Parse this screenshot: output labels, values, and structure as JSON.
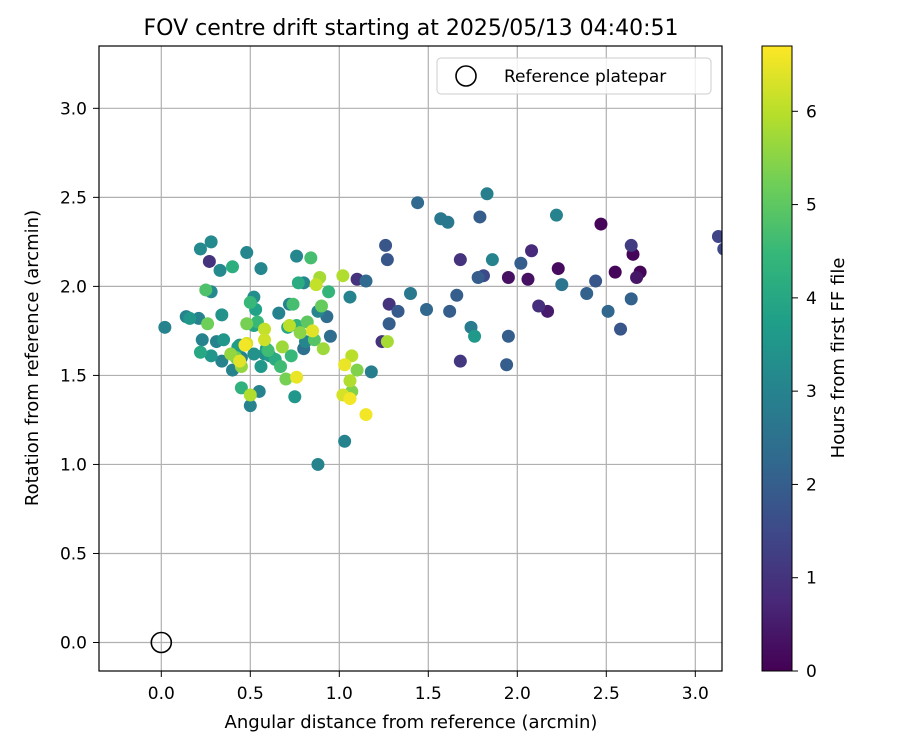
{
  "chart_data": {
    "type": "scatter",
    "title": "FOV centre drift starting at 2025/05/13 04:40:51",
    "xlabel": "Angular distance from reference (arcmin)",
    "ylabel": "Rotation from reference (arcmin)",
    "xlim": [
      -0.35,
      3.15
    ],
    "ylim": [
      -0.16,
      3.35
    ],
    "xticks": [
      0.0,
      0.5,
      1.0,
      1.5,
      2.0,
      2.5,
      3.0
    ],
    "yticks": [
      0.0,
      0.5,
      1.0,
      1.5,
      2.0,
      2.5,
      3.0
    ],
    "xtick_labels": [
      "0.0",
      "0.5",
      "1.0",
      "1.5",
      "2.0",
      "2.5",
      "3.0"
    ],
    "ytick_labels": [
      "0.0",
      "0.5",
      "1.0",
      "1.5",
      "2.0",
      "2.5",
      "3.0"
    ],
    "grid": true,
    "legend": {
      "placement": "top-right",
      "entries": [
        {
          "label": "Reference platepar",
          "marker": "open-circle",
          "x": 0.0,
          "y": 0.0
        }
      ]
    },
    "colorbar": {
      "label": "Hours from first FF file",
      "range": [
        0,
        6.7
      ],
      "ticks": [
        0,
        1,
        2,
        3,
        4,
        5,
        6
      ],
      "tick_labels": [
        "0",
        "1",
        "2",
        "3",
        "4",
        "5",
        "6"
      ],
      "colormap": "viridis"
    },
    "colormap_stops": [
      "#440154",
      "#482878",
      "#3e4989",
      "#31688e",
      "#26828e",
      "#1f9e89",
      "#35b779",
      "#6ece58",
      "#b5de2b",
      "#fde725"
    ],
    "points": [
      {
        "x": 2.47,
        "y": 2.35,
        "c": 0.1
      },
      {
        "x": 2.65,
        "y": 2.18,
        "c": 0.1
      },
      {
        "x": 2.69,
        "y": 2.08,
        "c": 0.1
      },
      {
        "x": 2.55,
        "y": 2.08,
        "c": 0.1
      },
      {
        "x": 2.23,
        "y": 2.1,
        "c": 0.2
      },
      {
        "x": 2.06,
        "y": 2.04,
        "c": 0.3
      },
      {
        "x": 1.95,
        "y": 2.05,
        "c": 0.3
      },
      {
        "x": 2.67,
        "y": 2.05,
        "c": 0.4
      },
      {
        "x": 2.17,
        "y": 1.86,
        "c": 0.5
      },
      {
        "x": 2.08,
        "y": 2.2,
        "c": 0.8
      },
      {
        "x": 2.12,
        "y": 1.89,
        "c": 0.9
      },
      {
        "x": 1.68,
        "y": 2.15,
        "c": 1.0
      },
      {
        "x": 1.1,
        "y": 2.04,
        "c": 1.0
      },
      {
        "x": 1.24,
        "y": 1.69,
        "c": 1.0
      },
      {
        "x": 1.28,
        "y": 1.9,
        "c": 1.0
      },
      {
        "x": 0.27,
        "y": 2.14,
        "c": 1.0
      },
      {
        "x": 1.68,
        "y": 1.58,
        "c": 1.1
      },
      {
        "x": 2.64,
        "y": 2.23,
        "c": 1.2
      },
      {
        "x": 3.13,
        "y": 2.28,
        "c": 1.4
      },
      {
        "x": 3.16,
        "y": 2.21,
        "c": 1.5
      },
      {
        "x": 1.81,
        "y": 2.06,
        "c": 1.5
      },
      {
        "x": 2.44,
        "y": 2.03,
        "c": 1.8
      },
      {
        "x": 2.58,
        "y": 1.76,
        "c": 1.8
      },
      {
        "x": 1.26,
        "y": 2.23,
        "c": 1.8
      },
      {
        "x": 1.27,
        "y": 2.15,
        "c": 1.8
      },
      {
        "x": 1.33,
        "y": 1.86,
        "c": 1.9
      },
      {
        "x": 1.79,
        "y": 2.39,
        "c": 2.0
      },
      {
        "x": 1.78,
        "y": 2.05,
        "c": 2.0
      },
      {
        "x": 1.66,
        "y": 1.95,
        "c": 2.0
      },
      {
        "x": 2.02,
        "y": 2.13,
        "c": 2.0
      },
      {
        "x": 1.95,
        "y": 1.72,
        "c": 2.0
      },
      {
        "x": 1.94,
        "y": 1.56,
        "c": 2.0
      },
      {
        "x": 1.62,
        "y": 1.86,
        "c": 2.0
      },
      {
        "x": 1.28,
        "y": 1.79,
        "c": 2.0
      },
      {
        "x": 2.39,
        "y": 1.96,
        "c": 2.1
      },
      {
        "x": 2.64,
        "y": 1.93,
        "c": 2.1
      },
      {
        "x": 2.51,
        "y": 1.86,
        "c": 2.2
      },
      {
        "x": 1.49,
        "y": 1.87,
        "c": 2.2
      },
      {
        "x": 1.44,
        "y": 2.47,
        "c": 2.3
      },
      {
        "x": 1.15,
        "y": 2.03,
        "c": 2.3
      },
      {
        "x": 0.95,
        "y": 1.72,
        "c": 2.4
      },
      {
        "x": 0.93,
        "y": 1.83,
        "c": 2.4
      },
      {
        "x": 0.8,
        "y": 1.65,
        "c": 2.5
      },
      {
        "x": 2.25,
        "y": 2.01,
        "c": 2.6
      },
      {
        "x": 1.4,
        "y": 1.96,
        "c": 2.7
      },
      {
        "x": 1.57,
        "y": 2.38,
        "c": 2.7
      },
      {
        "x": 1.61,
        "y": 2.36,
        "c": 2.7
      },
      {
        "x": 1.74,
        "y": 1.77,
        "c": 2.8
      },
      {
        "x": 1.83,
        "y": 2.52,
        "c": 2.9
      },
      {
        "x": 1.18,
        "y": 1.52,
        "c": 2.9
      },
      {
        "x": 1.06,
        "y": 1.94,
        "c": 3.0
      },
      {
        "x": 2.22,
        "y": 2.4,
        "c": 3.0
      },
      {
        "x": 1.86,
        "y": 2.15,
        "c": 3.0
      },
      {
        "x": 0.88,
        "y": 1.0,
        "c": 3.0
      },
      {
        "x": 1.03,
        "y": 1.13,
        "c": 3.0
      },
      {
        "x": 0.02,
        "y": 1.77,
        "c": 3.0
      },
      {
        "x": 0.14,
        "y": 1.83,
        "c": 3.0
      },
      {
        "x": 0.21,
        "y": 1.82,
        "c": 3.0
      },
      {
        "x": 0.23,
        "y": 1.7,
        "c": 3.0
      },
      {
        "x": 0.31,
        "y": 1.69,
        "c": 3.0
      },
      {
        "x": 0.34,
        "y": 1.58,
        "c": 3.0
      },
      {
        "x": 0.4,
        "y": 1.53,
        "c": 3.0
      },
      {
        "x": 0.45,
        "y": 1.6,
        "c": 3.0
      },
      {
        "x": 0.5,
        "y": 1.33,
        "c": 3.0
      },
      {
        "x": 0.55,
        "y": 1.41,
        "c": 3.0
      },
      {
        "x": 0.66,
        "y": 1.85,
        "c": 3.0
      },
      {
        "x": 0.72,
        "y": 1.9,
        "c": 3.0
      },
      {
        "x": 0.76,
        "y": 2.17,
        "c": 3.1
      },
      {
        "x": 0.8,
        "y": 2.02,
        "c": 3.1
      },
      {
        "x": 0.81,
        "y": 1.69,
        "c": 3.1
      },
      {
        "x": 0.88,
        "y": 1.86,
        "c": 3.1
      },
      {
        "x": 0.56,
        "y": 2.1,
        "c": 3.1
      },
      {
        "x": 0.48,
        "y": 2.19,
        "c": 3.1
      },
      {
        "x": 0.28,
        "y": 2.25,
        "c": 3.2
      },
      {
        "x": 0.33,
        "y": 2.09,
        "c": 3.2
      },
      {
        "x": 0.22,
        "y": 2.21,
        "c": 3.2
      },
      {
        "x": 0.28,
        "y": 1.97,
        "c": 3.2
      },
      {
        "x": 0.52,
        "y": 1.94,
        "c": 3.3
      },
      {
        "x": 0.58,
        "y": 1.62,
        "c": 3.3
      },
      {
        "x": 0.44,
        "y": 1.67,
        "c": 3.4
      },
      {
        "x": 0.52,
        "y": 1.62,
        "c": 3.4
      },
      {
        "x": 0.34,
        "y": 1.84,
        "c": 3.4
      },
      {
        "x": 0.16,
        "y": 1.82,
        "c": 3.5
      },
      {
        "x": 0.28,
        "y": 1.61,
        "c": 3.5
      },
      {
        "x": 0.35,
        "y": 1.7,
        "c": 3.5
      },
      {
        "x": 0.75,
        "y": 1.38,
        "c": 3.5
      },
      {
        "x": 1.76,
        "y": 1.72,
        "c": 3.6
      },
      {
        "x": 0.56,
        "y": 1.55,
        "c": 3.6
      },
      {
        "x": 0.61,
        "y": 1.61,
        "c": 3.6
      },
      {
        "x": 0.43,
        "y": 1.66,
        "c": 3.7
      },
      {
        "x": 0.53,
        "y": 1.87,
        "c": 3.8
      },
      {
        "x": 0.59,
        "y": 1.65,
        "c": 3.8
      },
      {
        "x": 0.52,
        "y": 1.78,
        "c": 3.9
      },
      {
        "x": 0.22,
        "y": 1.63,
        "c": 4.0
      },
      {
        "x": 0.71,
        "y": 1.77,
        "c": 4.0
      },
      {
        "x": 0.77,
        "y": 2.02,
        "c": 4.1
      },
      {
        "x": 0.64,
        "y": 1.59,
        "c": 4.1
      },
      {
        "x": 0.4,
        "y": 2.11,
        "c": 4.2
      },
      {
        "x": 0.45,
        "y": 1.43,
        "c": 4.3
      },
      {
        "x": 0.76,
        "y": 1.78,
        "c": 4.3
      },
      {
        "x": 0.94,
        "y": 1.97,
        "c": 4.4
      },
      {
        "x": 0.5,
        "y": 1.91,
        "c": 4.5
      },
      {
        "x": 0.54,
        "y": 1.8,
        "c": 4.5
      },
      {
        "x": 0.73,
        "y": 1.61,
        "c": 4.5
      },
      {
        "x": 0.6,
        "y": 1.64,
        "c": 4.6
      },
      {
        "x": 0.67,
        "y": 1.55,
        "c": 4.6
      },
      {
        "x": 0.74,
        "y": 1.9,
        "c": 4.7
      },
      {
        "x": 0.84,
        "y": 2.16,
        "c": 4.7
      },
      {
        "x": 0.25,
        "y": 1.98,
        "c": 4.8
      },
      {
        "x": 0.86,
        "y": 1.7,
        "c": 4.9
      },
      {
        "x": 0.82,
        "y": 1.8,
        "c": 5.0
      },
      {
        "x": 0.9,
        "y": 1.89,
        "c": 5.1
      },
      {
        "x": 0.26,
        "y": 1.79,
        "c": 5.2
      },
      {
        "x": 0.42,
        "y": 1.6,
        "c": 5.2
      },
      {
        "x": 0.48,
        "y": 1.79,
        "c": 5.3
      },
      {
        "x": 0.7,
        "y": 1.48,
        "c": 5.3
      },
      {
        "x": 1.07,
        "y": 1.41,
        "c": 5.4
      },
      {
        "x": 1.1,
        "y": 1.53,
        "c": 5.4
      },
      {
        "x": 0.78,
        "y": 1.74,
        "c": 5.5
      },
      {
        "x": 0.39,
        "y": 1.62,
        "c": 5.6
      },
      {
        "x": 0.45,
        "y": 1.55,
        "c": 5.6
      },
      {
        "x": 0.68,
        "y": 1.66,
        "c": 5.7
      },
      {
        "x": 0.91,
        "y": 1.65,
        "c": 5.7
      },
      {
        "x": 0.89,
        "y": 2.05,
        "c": 5.8
      },
      {
        "x": 1.27,
        "y": 1.69,
        "c": 5.8
      },
      {
        "x": 0.5,
        "y": 1.39,
        "c": 5.9
      },
      {
        "x": 1.02,
        "y": 2.06,
        "c": 5.9
      },
      {
        "x": 1.06,
        "y": 1.47,
        "c": 5.9
      },
      {
        "x": 1.07,
        "y": 1.61,
        "c": 6.0
      },
      {
        "x": 0.72,
        "y": 1.78,
        "c": 6.0
      },
      {
        "x": 0.87,
        "y": 2.01,
        "c": 6.1
      },
      {
        "x": 0.58,
        "y": 1.76,
        "c": 6.1
      },
      {
        "x": 0.58,
        "y": 1.7,
        "c": 6.2
      },
      {
        "x": 0.48,
        "y": 1.68,
        "c": 6.3
      },
      {
        "x": 1.02,
        "y": 1.39,
        "c": 6.3
      },
      {
        "x": 0.44,
        "y": 1.58,
        "c": 6.4
      },
      {
        "x": 0.85,
        "y": 1.75,
        "c": 6.4
      },
      {
        "x": 1.03,
        "y": 1.56,
        "c": 6.5
      },
      {
        "x": 0.76,
        "y": 1.49,
        "c": 6.5
      },
      {
        "x": 1.06,
        "y": 1.37,
        "c": 6.6
      },
      {
        "x": 1.15,
        "y": 1.28,
        "c": 6.6
      },
      {
        "x": 0.47,
        "y": 1.67,
        "c": 6.6
      }
    ]
  }
}
